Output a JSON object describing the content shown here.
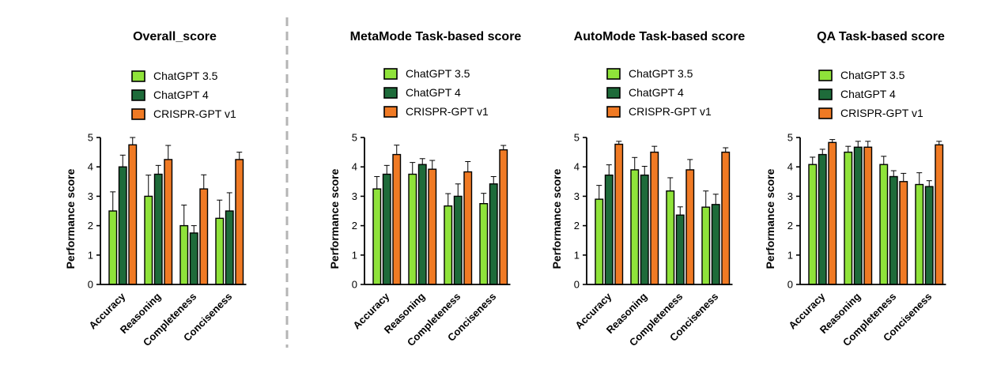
{
  "chart_data": [
    {
      "type": "bar",
      "title": "Overall_score",
      "ylabel": "Performance score",
      "xlabel": "",
      "ylim": [
        0,
        5
      ],
      "yticks": [
        0,
        1,
        2,
        3,
        4,
        5
      ],
      "categories": [
        "Accuracy",
        "Reasoning",
        "Completeness",
        "Conciseness"
      ],
      "series": [
        {
          "name": "ChatGPT 3.5",
          "color": "#8fe33a",
          "values": [
            2.5,
            3.0,
            2.0,
            2.25
          ],
          "errors": [
            0.65,
            0.72,
            0.7,
            0.62
          ]
        },
        {
          "name": "ChatGPT 4",
          "color": "#1e6b3a",
          "values": [
            4.0,
            3.75,
            1.75,
            2.5
          ],
          "errors": [
            0.4,
            0.3,
            0.25,
            0.62
          ]
        },
        {
          "name": "CRISPR-GPT v1",
          "color": "#f07a24",
          "values": [
            4.75,
            4.25,
            3.25,
            4.25
          ],
          "errors": [
            0.25,
            0.48,
            0.48,
            0.25
          ]
        }
      ]
    },
    {
      "type": "bar",
      "title": "MetaMode Task-based score",
      "ylabel": "Performance score",
      "xlabel": "",
      "ylim": [
        0,
        5
      ],
      "yticks": [
        0,
        1,
        2,
        3,
        4,
        5
      ],
      "categories": [
        "Accuracy",
        "Reasoning",
        "Completeness",
        "Conciseness"
      ],
      "series": [
        {
          "name": "ChatGPT 3.5",
          "color": "#8fe33a",
          "values": [
            3.25,
            3.75,
            2.67,
            2.75
          ],
          "errors": [
            0.42,
            0.4,
            0.42,
            0.35
          ]
        },
        {
          "name": "ChatGPT 4",
          "color": "#1e6b3a",
          "values": [
            3.75,
            4.08,
            3.0,
            3.42
          ],
          "errors": [
            0.3,
            0.2,
            0.42,
            0.25
          ]
        },
        {
          "name": "CRISPR-GPT v1",
          "color": "#f07a24",
          "values": [
            4.42,
            3.92,
            3.83,
            4.58
          ],
          "errors": [
            0.32,
            0.3,
            0.35,
            0.15
          ]
        }
      ]
    },
    {
      "type": "bar",
      "title": "AutoMode Task-based score",
      "ylabel": "Performance score",
      "xlabel": "",
      "ylim": [
        0,
        5
      ],
      "yticks": [
        0,
        1,
        2,
        3,
        4,
        5
      ],
      "categories": [
        "Accuracy",
        "Reasoning",
        "Completeness",
        "Conciseness"
      ],
      "series": [
        {
          "name": "ChatGPT 3.5",
          "color": "#8fe33a",
          "values": [
            2.9,
            3.9,
            3.18,
            2.63
          ],
          "errors": [
            0.47,
            0.42,
            0.45,
            0.55
          ]
        },
        {
          "name": "ChatGPT 4",
          "color": "#1e6b3a",
          "values": [
            3.72,
            3.72,
            2.36,
            2.72
          ],
          "errors": [
            0.35,
            0.3,
            0.28,
            0.35
          ]
        },
        {
          "name": "CRISPR-GPT v1",
          "color": "#f07a24",
          "values": [
            4.77,
            4.5,
            3.9,
            4.5
          ],
          "errors": [
            0.1,
            0.2,
            0.35,
            0.15
          ]
        }
      ]
    },
    {
      "type": "bar",
      "title": "QA Task-based score",
      "ylabel": "Performance score",
      "xlabel": "",
      "ylim": [
        0,
        5
      ],
      "yticks": [
        0,
        1,
        2,
        3,
        4,
        5
      ],
      "categories": [
        "Accuracy",
        "Reasoning",
        "Completeness",
        "Conciseness"
      ],
      "series": [
        {
          "name": "ChatGPT 3.5",
          "color": "#8fe33a",
          "values": [
            4.08,
            4.5,
            4.08,
            3.4
          ],
          "errors": [
            0.25,
            0.2,
            0.28,
            0.4
          ]
        },
        {
          "name": "ChatGPT 4",
          "color": "#1e6b3a",
          "values": [
            4.42,
            4.67,
            3.67,
            3.33
          ],
          "errors": [
            0.18,
            0.2,
            0.2,
            0.2
          ]
        },
        {
          "name": "CRISPR-GPT v1",
          "color": "#f07a24",
          "values": [
            4.83,
            4.67,
            3.5,
            4.75
          ],
          "errors": [
            0.1,
            0.2,
            0.28,
            0.12
          ]
        }
      ]
    }
  ]
}
